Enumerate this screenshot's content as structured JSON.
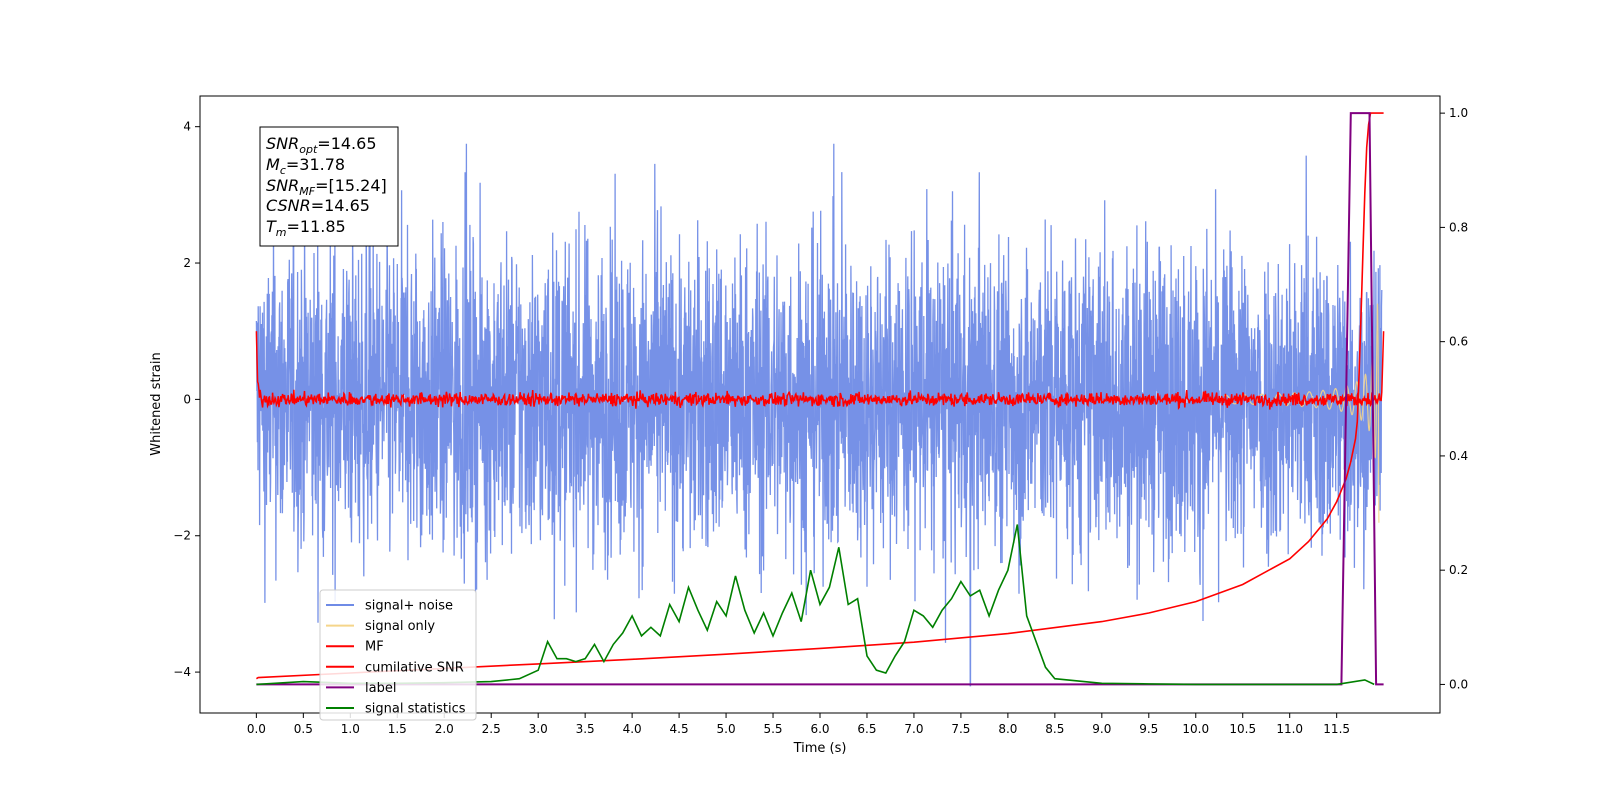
{
  "chart_data": {
    "type": "line",
    "xlabel": "Time (s)",
    "ylabel": "Whitened strain",
    "xlim": [
      -0.6,
      12.6
    ],
    "ylim": [
      -4.6,
      4.45
    ],
    "y2lim": [
      -0.05,
      1.03
    ],
    "x_ticks": [
      "0.0",
      "0.5",
      "1.0",
      "1.5",
      "2.0",
      "2.5",
      "3.0",
      "3.5",
      "4.0",
      "4.5",
      "5.0",
      "5.5",
      "6.0",
      "6.5",
      "7.0",
      "7.5",
      "8.0",
      "8.5",
      "9.0",
      "9.5",
      "10.0",
      "10.5",
      "11.0",
      "11.5"
    ],
    "y_ticks": [
      "4",
      "2",
      "0",
      "−2",
      "−4"
    ],
    "y_tick_values": [
      4,
      2,
      0,
      -2,
      -4
    ],
    "y2_ticks": [
      "1.0",
      "0.8",
      "0.6",
      "0.4",
      "0.2",
      "0.0"
    ],
    "y2_tick_values": [
      1.0,
      0.8,
      0.6,
      0.4,
      0.2,
      0.0
    ],
    "legend_position": "lower-left",
    "legend": [
      {
        "name": "signal+ noise",
        "color": "#6f8be6"
      },
      {
        "name": "signal only",
        "color": "#f5d58a"
      },
      {
        "name": "MF",
        "color": "#ff0000"
      },
      {
        "name": "cumilative SNR",
        "color": "#ff0000"
      },
      {
        "name": "label",
        "color": "#800080"
      },
      {
        "name": "signal statistics",
        "color": "#008000"
      }
    ],
    "annotation": [
      {
        "var": "SNR",
        "sub": "opt",
        "value": "=14.65"
      },
      {
        "var": "M",
        "sub": "c",
        "value": "=31.78"
      },
      {
        "var": "SNR",
        "sub": "MF",
        "value": "=[15.24]"
      },
      {
        "var": "CSNR",
        "sub": "",
        "value": "=14.65"
      },
      {
        "var": "T",
        "sub": "m",
        "value": "=11.85"
      }
    ],
    "series": [
      {
        "name": "signal statistics",
        "axis": "right",
        "x": [
          0.0,
          0.5,
          1.0,
          1.5,
          2.0,
          2.5,
          2.8,
          3.0,
          3.1,
          3.2,
          3.3,
          3.4,
          3.5,
          3.6,
          3.7,
          3.8,
          3.9,
          4.0,
          4.1,
          4.2,
          4.3,
          4.4,
          4.5,
          4.6,
          4.7,
          4.8,
          4.9,
          5.0,
          5.1,
          5.2,
          5.3,
          5.4,
          5.5,
          5.6,
          5.7,
          5.8,
          5.9,
          6.0,
          6.1,
          6.2,
          6.3,
          6.4,
          6.5,
          6.6,
          6.7,
          6.8,
          6.9,
          7.0,
          7.1,
          7.2,
          7.3,
          7.4,
          7.5,
          7.6,
          7.7,
          7.8,
          7.9,
          8.0,
          8.1,
          8.2,
          8.3,
          8.4,
          8.5,
          9.0,
          9.5,
          10.0,
          10.5,
          11.0,
          11.5,
          11.8,
          11.9
        ],
        "values": [
          0.0,
          0.005,
          0.002,
          0.002,
          0.003,
          0.005,
          0.01,
          0.025,
          0.075,
          0.045,
          0.045,
          0.04,
          0.045,
          0.07,
          0.04,
          0.07,
          0.09,
          0.12,
          0.085,
          0.1,
          0.085,
          0.14,
          0.11,
          0.17,
          0.13,
          0.095,
          0.145,
          0.12,
          0.19,
          0.13,
          0.09,
          0.125,
          0.085,
          0.125,
          0.16,
          0.11,
          0.2,
          0.14,
          0.17,
          0.24,
          0.14,
          0.15,
          0.05,
          0.025,
          0.02,
          0.05,
          0.075,
          0.13,
          0.12,
          0.1,
          0.13,
          0.15,
          0.18,
          0.155,
          0.165,
          0.12,
          0.165,
          0.2,
          0.28,
          0.12,
          0.075,
          0.03,
          0.01,
          0.002,
          0.001,
          0.0,
          0.0,
          0.0,
          0.0,
          0.008,
          0.0
        ]
      },
      {
        "name": "cumilative SNR",
        "axis": "right",
        "x": [
          0.0,
          0.02,
          1.0,
          2.0,
          3.0,
          4.0,
          5.0,
          6.0,
          7.0,
          8.0,
          9.0,
          9.5,
          10.0,
          10.5,
          11.0,
          11.2,
          11.4,
          11.5,
          11.6,
          11.65,
          11.7,
          11.72
        ],
        "values": [
          0.01,
          0.012,
          0.02,
          0.028,
          0.036,
          0.044,
          0.053,
          0.063,
          0.074,
          0.089,
          0.11,
          0.125,
          0.145,
          0.175,
          0.22,
          0.25,
          0.29,
          0.32,
          0.36,
          0.39,
          0.43,
          0.46
        ]
      },
      {
        "name": "label",
        "axis": "right",
        "x": [
          0.0,
          11.55,
          11.65,
          11.85,
          11.92,
          12.0
        ],
        "values": [
          0.0,
          0.0,
          1.0,
          1.0,
          0.0,
          0.0
        ]
      }
    ]
  }
}
